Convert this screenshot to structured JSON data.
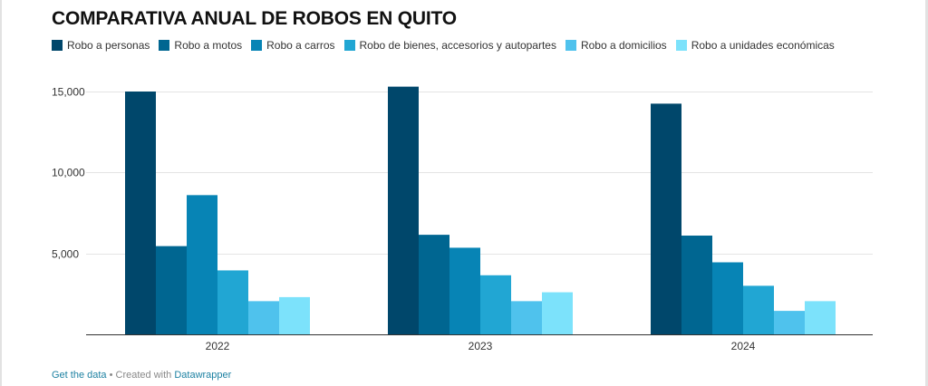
{
  "chart_data": {
    "type": "bar",
    "title": "COMPARATIVA ANUAL DE ROBOS EN QUITO",
    "categories": [
      "2022",
      "2023",
      "2024"
    ],
    "series": [
      {
        "name": "Robo a personas",
        "color": "#00476b",
        "values": [
          15000,
          15300,
          14250
        ]
      },
      {
        "name": "Robo a motos",
        "color": "#006691",
        "values": [
          5450,
          6150,
          6100
        ]
      },
      {
        "name": "Robo a carros",
        "color": "#0784b5",
        "values": [
          8600,
          5350,
          4450
        ]
      },
      {
        "name": "Robo de bienes, accesorios y autopartes",
        "color": "#21a6d3",
        "values": [
          3950,
          3650,
          3000
        ]
      },
      {
        "name": "Robo a domicilios",
        "color": "#4fc2ed",
        "values": [
          2050,
          2050,
          1450
        ]
      },
      {
        "name": "Robo a unidades económicas",
        "color": "#7ce2fb",
        "values": [
          2300,
          2600,
          2050
        ]
      }
    ],
    "yticks": [
      "5,000",
      "10,000",
      "15,000"
    ],
    "ytick_values": [
      5000,
      10000,
      15000
    ],
    "ylim": [
      0,
      16000
    ],
    "grid": true,
    "legend": "top-left"
  },
  "footer": {
    "get_data": "Get the data",
    "separator": " • Created with ",
    "tool": "Datawrapper"
  }
}
